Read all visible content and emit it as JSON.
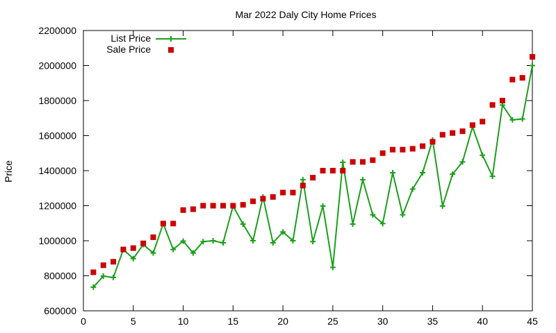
{
  "chart_data": {
    "type": "line",
    "title": "Mar 2022 Daly City Home Prices",
    "xlabel": "",
    "ylabel": "Price",
    "xlim": [
      0,
      45
    ],
    "ylim": [
      600000,
      2200000
    ],
    "xticks": [
      "0",
      "5",
      "10",
      "15",
      "20",
      "25",
      "30",
      "35",
      "40",
      "45"
    ],
    "yticks": [
      "600000",
      "800000",
      "1000000",
      "1200000",
      "1400000",
      "1600000",
      "1800000",
      "2000000",
      "2200000"
    ],
    "grid": false,
    "legend_position": "top-left",
    "x": [
      1,
      2,
      3,
      4,
      5,
      6,
      7,
      8,
      9,
      10,
      11,
      12,
      13,
      14,
      15,
      16,
      17,
      18,
      19,
      20,
      21,
      22,
      23,
      24,
      25,
      26,
      27,
      28,
      29,
      30,
      31,
      32,
      33,
      34,
      35,
      36,
      37,
      38,
      39,
      40,
      41,
      42,
      43,
      44,
      45
    ],
    "series": [
      {
        "name": "List Price",
        "style": "line-with-plus-markers",
        "color": "#1a9e1a",
        "values": [
          735000,
          798000,
          790000,
          950000,
          898000,
          978000,
          930000,
          1098000,
          950000,
          998000,
          930000,
          995000,
          1000000,
          988000,
          1198000,
          1095000,
          1000000,
          1250000,
          988000,
          1050000,
          1000000,
          1348000,
          995000,
          1198000,
          848000,
          1448000,
          1095000,
          1348000,
          1148000,
          1098000,
          1388000,
          1148000,
          1295000,
          1388000,
          1575000,
          1198000,
          1380000,
          1450000,
          1650000,
          1488000,
          1368000,
          1775000,
          1690000,
          1695000,
          2000000
        ]
      },
      {
        "name": "Sale Price",
        "style": "square-markers",
        "color": "#cc0000",
        "values": [
          820000,
          860000,
          880000,
          950000,
          958000,
          985000,
          1020000,
          1098000,
          1098000,
          1175000,
          1180000,
          1200000,
          1200000,
          1200000,
          1200000,
          1205000,
          1225000,
          1240000,
          1250000,
          1275000,
          1275000,
          1315000,
          1360000,
          1400000,
          1400000,
          1400000,
          1450000,
          1450000,
          1460000,
          1500000,
          1520000,
          1520000,
          1525000,
          1540000,
          1565000,
          1605000,
          1615000,
          1625000,
          1660000,
          1680000,
          1775000,
          1800000,
          1920000,
          1930000,
          2050000
        ]
      }
    ]
  }
}
